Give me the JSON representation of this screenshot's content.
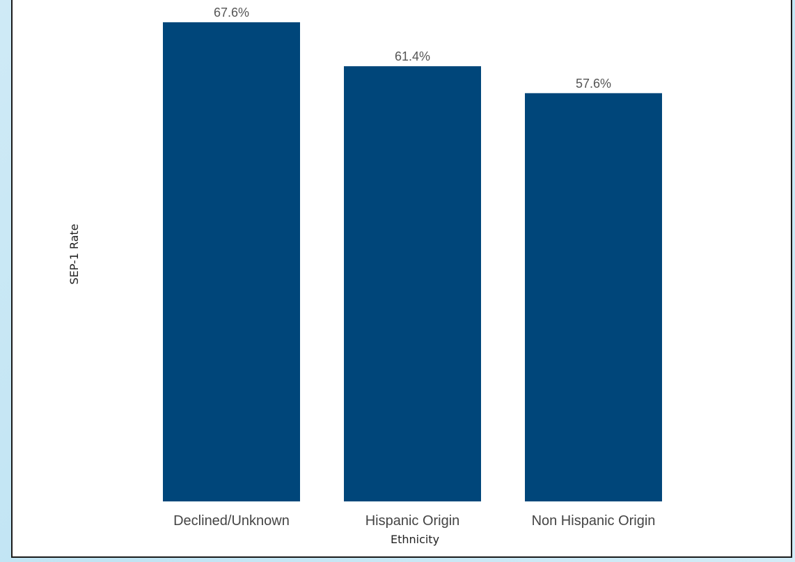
{
  "chart_data": {
    "type": "bar",
    "categories": [
      "Declined/Unknown",
      "Hispanic Origin",
      "Non Hispanic Origin"
    ],
    "values": [
      67.6,
      61.4,
      57.6
    ],
    "data_labels": [
      "67.6%",
      "61.4%",
      "57.6%"
    ],
    "xlabel": "Ethnicity",
    "ylabel": "SEP-1 Rate",
    "ylim": [
      0,
      70
    ],
    "grid": false,
    "bar_color": "#00467a"
  }
}
